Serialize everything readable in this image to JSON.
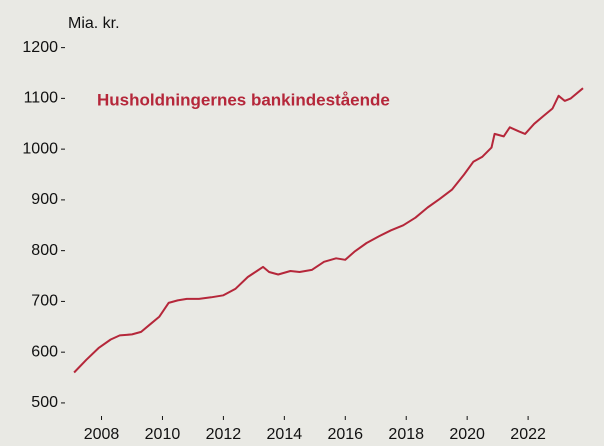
{
  "chart_data": {
    "type": "line",
    "y_axis_label": "Mia. kr.",
    "series": [
      {
        "name": "Husholdningernes bankindestående",
        "color": "#b5273a",
        "x": [
          2007.1,
          2007.5,
          2007.9,
          2008.3,
          2008.6,
          2009.0,
          2009.3,
          2009.6,
          2009.9,
          2010.2,
          2010.5,
          2010.8,
          2011.2,
          2011.6,
          2012.0,
          2012.4,
          2012.8,
          2013.1,
          2013.3,
          2013.5,
          2013.8,
          2014.2,
          2014.5,
          2014.9,
          2015.3,
          2015.7,
          2016.0,
          2016.3,
          2016.7,
          2017.1,
          2017.5,
          2017.9,
          2018.3,
          2018.7,
          2019.1,
          2019.5,
          2019.9,
          2020.2,
          2020.5,
          2020.8,
          2020.9,
          2021.2,
          2021.4,
          2021.7,
          2021.9,
          2022.2,
          2022.5,
          2022.8,
          2023.0,
          2023.2,
          2023.4,
          2023.8
        ],
        "values": [
          560,
          585,
          608,
          625,
          633,
          635,
          640,
          655,
          670,
          697,
          702,
          705,
          705,
          708,
          712,
          725,
          748,
          760,
          768,
          758,
          753,
          760,
          758,
          762,
          778,
          785,
          782,
          798,
          815,
          828,
          840,
          850,
          865,
          885,
          902,
          920,
          950,
          975,
          985,
          1003,
          1030,
          1025,
          1043,
          1035,
          1030,
          1050,
          1065,
          1080,
          1105,
          1095,
          1100,
          1120
        ]
      }
    ],
    "xlim": [
      2006.9,
      2023.9
    ],
    "xticks": [
      2008,
      2010,
      2012,
      2014,
      2016,
      2018,
      2020,
      2022
    ],
    "ylim": [
      490,
      1215
    ],
    "yticks": [
      500,
      600,
      700,
      800,
      900,
      1000,
      1100,
      1200
    ]
  }
}
